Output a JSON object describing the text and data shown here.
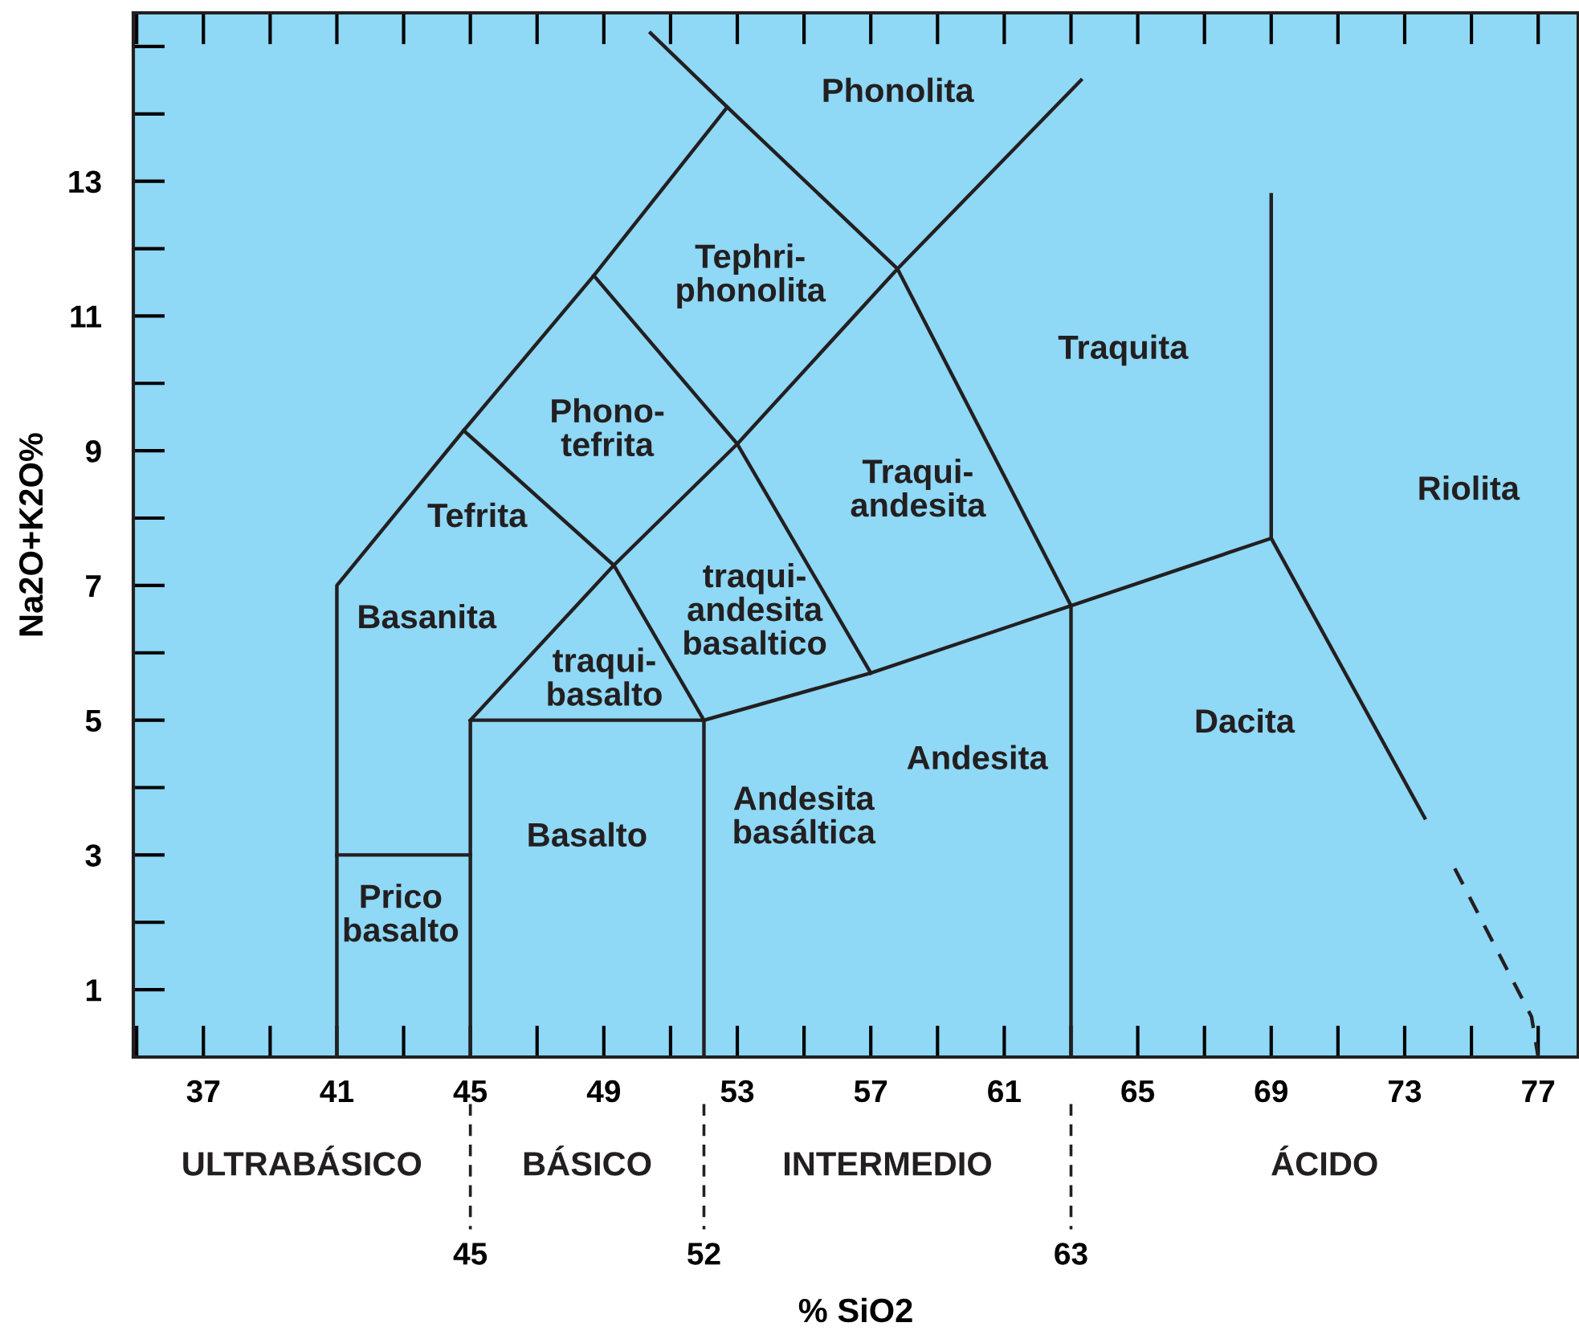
{
  "chart_data": {
    "type": "line",
    "xlabel": "% SiO2",
    "ylabel": "Na2O+K2O%",
    "xlim": [
      34.9,
      78.2
    ],
    "ylim": [
      0,
      15.5
    ],
    "xticks": [
      37,
      41,
      45,
      49,
      53,
      57,
      61,
      65,
      69,
      73,
      77
    ],
    "yticks": [
      1,
      3,
      5,
      7,
      9,
      11,
      13
    ],
    "x2lim": [
      34.9,
      78.2
    ],
    "x2ticks": [
      45,
      52,
      63
    ],
    "grid": false,
    "legend": false,
    "marker": "none",
    "series": [
      {
        "color": "#231f20",
        "x": [
          41,
          41,
          44.8,
          48.7,
          52.7,
          50.4
        ],
        "values": [
          0,
          7,
          9.3,
          11.6,
          14.1,
          15.2
        ]
      },
      {
        "color": "#231f20",
        "x": [
          52.7,
          57.8,
          63
        ],
        "values": [
          14.1,
          11.7,
          6.7
        ]
      },
      {
        "color": "#231f20",
        "x": [
          41,
          45
        ],
        "values": [
          3,
          3
        ]
      },
      {
        "color": "#231f20",
        "x": [
          45,
          45,
          52,
          52
        ],
        "values": [
          0,
          5,
          5,
          0
        ]
      },
      {
        "color": "#231f20",
        "x": [
          45,
          49.3,
          53,
          57.8,
          63.3
        ],
        "values": [
          5,
          7.3,
          9.1,
          11.7,
          14.5
        ]
      },
      {
        "color": "#231f20",
        "x": [
          44.8,
          49.3,
          52
        ],
        "values": [
          9.3,
          7.3,
          5
        ]
      },
      {
        "color": "#231f20",
        "x": [
          48.7,
          53,
          57
        ],
        "values": [
          11.6,
          9.1,
          5.7
        ]
      },
      {
        "color": "#231f20",
        "x": [
          52,
          57,
          63,
          69
        ],
        "values": [
          5,
          5.7,
          6.7,
          7.7
        ]
      },
      {
        "color": "#231f20",
        "x": [
          63,
          63
        ],
        "values": [
          0,
          6.7
        ]
      },
      {
        "color": "#231f20",
        "x": [
          69,
          69
        ],
        "values": [
          7.7,
          12.8
        ]
      },
      {
        "color": "#231f20",
        "x": [
          69,
          73.6
        ],
        "values": [
          7.7,
          3.55
        ]
      },
      {
        "color": "#231f20",
        "line_style": "dashed",
        "x": [
          74.5,
          76.8,
          77
        ],
        "values": [
          2.8,
          0.6,
          0
        ]
      }
    ],
    "annotations": [
      "Phonolita",
      "Tephri-\nphonolita",
      "Phono-\ntefrita",
      "Tefrita",
      "Basanita",
      "traqui-\nbasalto",
      "traqui-\nandesita\nbasaltico",
      "Traqui-\nandesita",
      "Traquita",
      "Riolita",
      "Dacita",
      "Andesita",
      "Andesita\nbasáltica",
      "Basalto",
      "Prico\nbasalto",
      "ULTRABÁSICO",
      "BÁSICO",
      "INTERMEDIO",
      "ÁCIDO"
    ]
  }
}
